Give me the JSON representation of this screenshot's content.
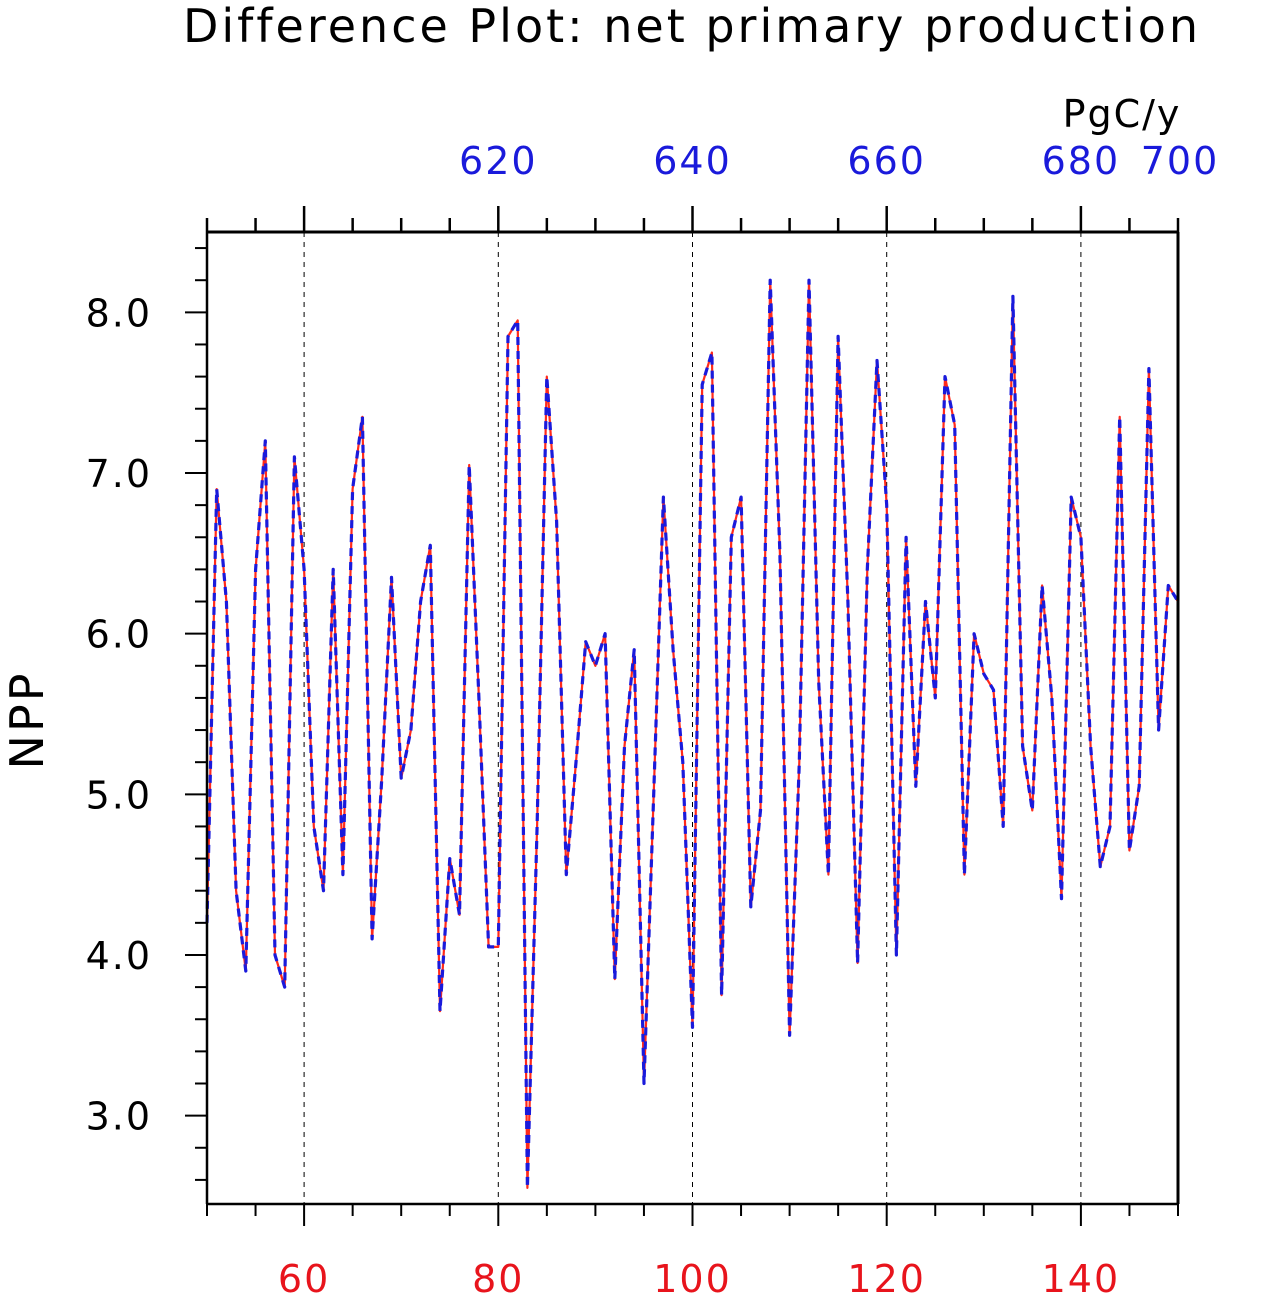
{
  "chart_data": {
    "type": "line",
    "title": "Difference Plot: net primary production",
    "units_label": "PgC/y",
    "ylabel": "NPP",
    "xlabel_bottom": "",
    "xlabel_top": "",
    "xlim_bottom": [
      50,
      150
    ],
    "xlim_top": [
      590,
      690
    ],
    "ylim": [
      2.45,
      8.5
    ],
    "grid": "vertical dashed",
    "bottom_ticks": [
      "60",
      "80",
      "100",
      "120",
      "140"
    ],
    "top_ticks": [
      "620",
      "640",
      "660",
      "680",
      "700"
    ],
    "y_ticks": [
      "3.0",
      "4.0",
      "5.0",
      "6.0",
      "7.0",
      "8.0"
    ],
    "colors": {
      "series_a": "#ff2a1a",
      "series_b": "#1a1adb",
      "bottom_axis_labels": "#e8141c",
      "top_axis_labels": "#1a1adb"
    },
    "x": [
      50,
      51,
      52,
      53,
      54,
      55,
      56,
      57,
      58,
      59,
      60,
      61,
      62,
      63,
      64,
      65,
      66,
      67,
      68,
      69,
      70,
      71,
      72,
      73,
      74,
      75,
      76,
      77,
      78,
      79,
      80,
      81,
      82,
      83,
      84,
      85,
      86,
      87,
      88,
      89,
      90,
      91,
      92,
      93,
      94,
      95,
      96,
      97,
      98,
      99,
      100,
      101,
      102,
      103,
      104,
      105,
      106,
      107,
      108,
      109,
      110,
      111,
      112,
      113,
      114,
      115,
      116,
      117,
      118,
      119,
      120,
      121,
      122,
      123,
      124,
      125,
      126,
      127,
      128,
      129,
      130,
      131,
      132,
      133,
      134,
      135,
      136,
      137,
      138,
      139,
      140,
      141,
      142,
      143,
      144,
      145,
      146,
      147,
      148,
      149,
      150
    ],
    "series": [
      {
        "values": [
          4.2,
          6.9,
          6.2,
          4.4,
          3.9,
          6.4,
          7.2,
          4.0,
          3.8,
          7.1,
          6.4,
          4.8,
          4.4,
          6.4,
          4.5,
          6.9,
          7.35,
          4.1,
          5.1,
          6.35,
          5.1,
          5.4,
          6.2,
          6.55,
          3.65,
          4.6,
          4.25,
          7.05,
          5.6,
          4.05,
          4.05,
          7.85,
          7.95,
          2.55,
          4.8,
          7.6,
          6.7,
          4.5,
          5.2,
          5.95,
          5.8,
          6.0,
          3.85,
          5.3,
          5.9,
          3.2,
          5.0,
          6.85,
          5.9,
          5.2,
          3.55,
          7.55,
          7.75,
          3.75,
          6.6,
          6.85,
          4.3,
          4.9,
          8.2,
          6.5,
          3.5,
          5.2,
          8.2,
          5.7,
          4.5,
          7.85,
          6.2,
          3.95,
          6.4,
          7.7,
          6.8,
          4.0,
          6.6,
          5.05,
          6.2,
          5.6,
          7.6,
          7.3,
          4.5,
          6.0,
          5.75,
          5.65,
          4.8,
          8.1,
          5.3,
          4.9,
          6.3,
          5.6,
          4.35,
          6.85,
          6.6,
          5.3,
          4.55,
          4.8,
          7.35,
          4.65,
          5.05,
          7.65,
          5.4,
          6.3,
          6.2
        ]
      },
      {
        "values": [
          4.2,
          6.9,
          6.2,
          4.4,
          3.9,
          6.4,
          7.2,
          4.0,
          3.8,
          7.1,
          6.4,
          4.8,
          4.4,
          6.4,
          4.5,
          6.9,
          7.35,
          4.1,
          5.1,
          6.35,
          5.1,
          5.4,
          6.2,
          6.55,
          3.65,
          4.6,
          4.25,
          7.05,
          5.6,
          4.05,
          4.05,
          7.85,
          7.95,
          2.55,
          4.8,
          7.6,
          6.7,
          4.5,
          5.2,
          5.95,
          5.8,
          6.0,
          3.85,
          5.3,
          5.9,
          3.2,
          5.0,
          6.85,
          5.9,
          5.2,
          3.55,
          7.55,
          7.75,
          3.75,
          6.6,
          6.85,
          4.3,
          4.9,
          8.2,
          6.5,
          3.5,
          5.2,
          8.2,
          5.7,
          4.5,
          7.85,
          6.2,
          3.95,
          6.4,
          7.7,
          6.8,
          4.0,
          6.6,
          5.05,
          6.2,
          5.6,
          7.6,
          7.3,
          4.5,
          6.0,
          5.75,
          5.65,
          4.8,
          8.1,
          5.3,
          4.9,
          6.3,
          5.6,
          4.35,
          6.85,
          6.6,
          5.3,
          4.55,
          4.8,
          7.35,
          4.65,
          5.05,
          7.65,
          5.4,
          6.3,
          6.2
        ]
      }
    ]
  }
}
